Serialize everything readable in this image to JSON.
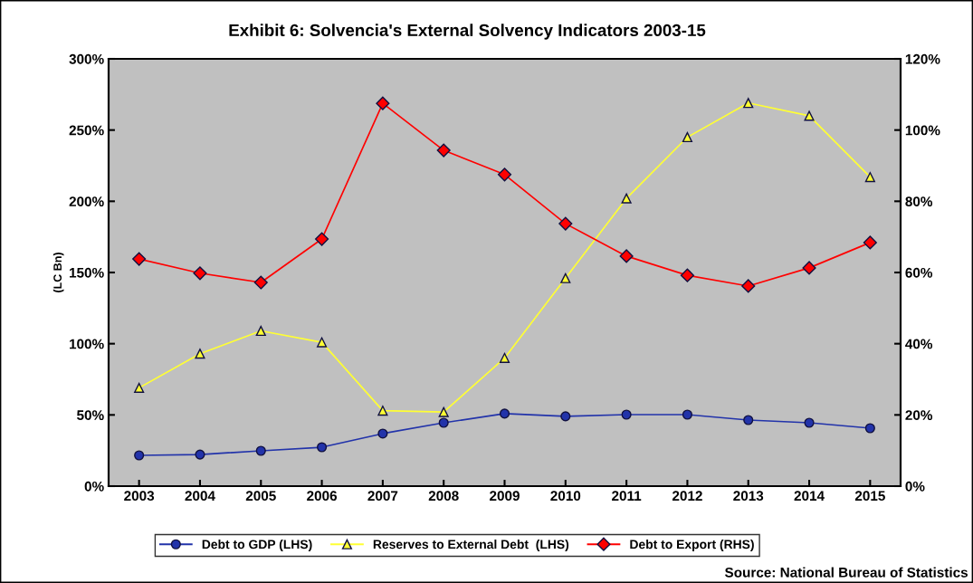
{
  "chart_data": {
    "type": "line",
    "title": "Exhibit 6: Solvencia's External Solvency Indicators 2003-15",
    "ylabel": "(LC Bn)",
    "categories": [
      "2003",
      "2004",
      "2005",
      "2006",
      "2007",
      "2008",
      "2009",
      "2010",
      "2011",
      "2012",
      "2013",
      "2014",
      "2015"
    ],
    "series": [
      {
        "name": "Debt to GDP (LHS)",
        "color": "#2233aa",
        "marker": "circle",
        "values": [
          21.6,
          22.2,
          24.8,
          27.3,
          36.9,
          44.5,
          50.9,
          49,
          50.2,
          50.2,
          46.4,
          44.5,
          40.7
        ]
      },
      {
        "name": "Reserves to External Debt  (LHS)",
        "color": "#ffff33",
        "marker": "triangle",
        "values": [
          69,
          93,
          109,
          101,
          53,
          52,
          90,
          146,
          202,
          245,
          269,
          260,
          217
        ]
      },
      {
        "name": "Debt to Export (RHS)",
        "color": "#ff0000",
        "marker": "diamond",
        "axis": "y2",
        "values": [
          63.8,
          59.8,
          57.2,
          69.4,
          107.5,
          94.3,
          87.5,
          73.7,
          64.6,
          59.2,
          56.2,
          61.3,
          68.4
        ]
      }
    ],
    "ylim": [
      0,
      300
    ],
    "yticks": [
      {
        "value": 0,
        "label": "0%"
      },
      {
        "value": 50,
        "label": "50%"
      },
      {
        "value": 100,
        "label": "100%"
      },
      {
        "value": 150,
        "label": "150%"
      },
      {
        "value": 200,
        "label": "200%"
      },
      {
        "value": 250,
        "label": "250%"
      },
      {
        "value": 300,
        "label": "300%"
      }
    ],
    "y2lim": [
      0,
      120
    ],
    "y2ticks": [
      {
        "value": 0,
        "label": "0%"
      },
      {
        "value": 20,
        "label": "20%"
      },
      {
        "value": 40,
        "label": "40%"
      },
      {
        "value": 60,
        "label": "60%"
      },
      {
        "value": 80,
        "label": "80%"
      },
      {
        "value": 100,
        "label": "100%"
      },
      {
        "value": 120,
        "label": "120%"
      }
    ],
    "legend": "bottom",
    "annotations": [
      "Source: National Bureau of Statistics"
    ]
  }
}
